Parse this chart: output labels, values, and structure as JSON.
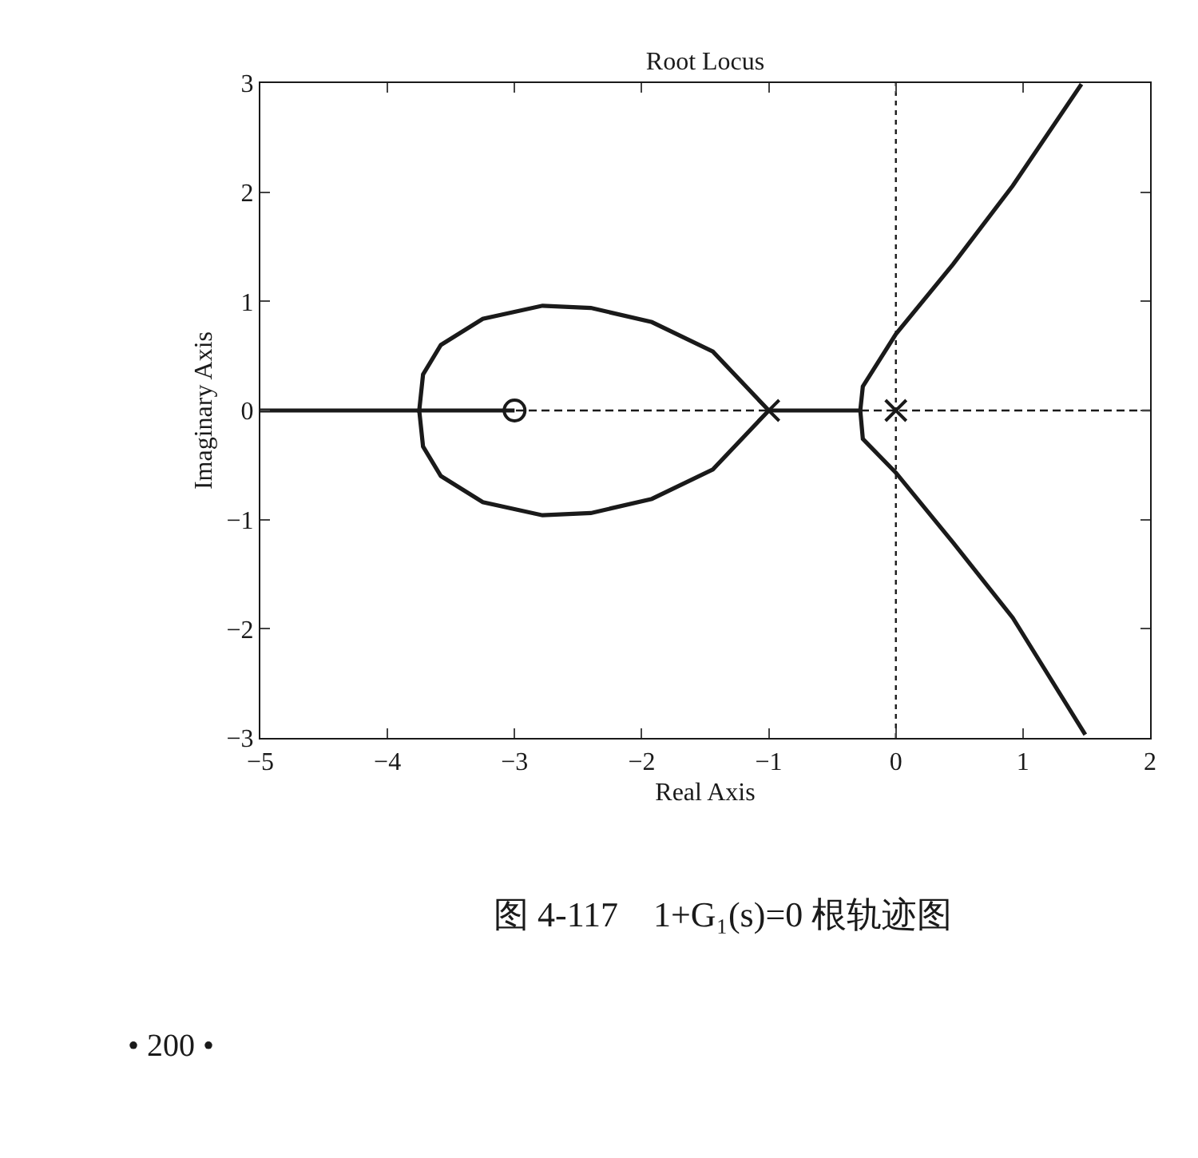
{
  "chart_data": {
    "type": "line",
    "title": "Root Locus",
    "xlabel": "Real Axis",
    "ylabel": "Imaginary Axis",
    "series": [
      {
        "color": "#1a1a1a",
        "x": [
          -1,
          -0.28
        ],
        "values": [
          0,
          0
        ]
      },
      {
        "color": "#1a1a1a",
        "x": [
          -1,
          -1.44,
          -1.92,
          -2.4,
          -2.78,
          -3.25,
          -3.58,
          -3.72,
          -3.75,
          -3
        ],
        "values": [
          0,
          0.54,
          0.81,
          0.94,
          0.96,
          0.84,
          0.6,
          0.33,
          0,
          0
        ]
      },
      {
        "color": "#1a1a1a",
        "x": [
          -1,
          -1.44,
          -1.92,
          -2.4,
          -2.78,
          -3.25,
          -3.58,
          -3.72,
          -3.75,
          -5
        ],
        "values": [
          0,
          -0.54,
          -0.81,
          -0.94,
          -0.96,
          -0.84,
          -0.6,
          -0.33,
          0,
          0
        ]
      },
      {
        "color": "#1a1a1a",
        "x": [
          1.46,
          0.92,
          0.45,
          0,
          -0.26,
          -0.28,
          -0.26,
          0,
          0.45,
          0.92,
          1.49
        ],
        "values": [
          2.99,
          2.06,
          1.34,
          0.7,
          0.22,
          0,
          -0.26,
          -0.57,
          -1.21,
          -1.9,
          -2.97
        ]
      },
      {
        "type": "scatter",
        "marker": "cross",
        "color": "#1a1a1a",
        "x": [
          -1,
          0
        ],
        "values": [
          0,
          0
        ]
      },
      {
        "type": "scatter",
        "marker": "circle",
        "color": "#1a1a1a",
        "x": [
          -3
        ],
        "values": [
          0
        ]
      }
    ],
    "xlim": [
      -5,
      2
    ],
    "xticks": [
      -5,
      -4,
      -3,
      -2,
      -1,
      0,
      1,
      2
    ],
    "ylim": [
      -3,
      3
    ],
    "yticks": [
      -3,
      -2,
      -1,
      0,
      1,
      2,
      3
    ],
    "ref_lines": [
      {
        "axis": "x",
        "value": 0,
        "color": "#1a1a1a",
        "line_style": "dotted"
      },
      {
        "axis": "y",
        "value": 0,
        "color": "#1a1a1a",
        "line_style": "dashed"
      }
    ],
    "line_style": "solid",
    "grid": false,
    "legend": false,
    "annotations": [
      "图 4-117　1+G₁(s)=0 根轨迹图",
      "• 200 •"
    ]
  }
}
